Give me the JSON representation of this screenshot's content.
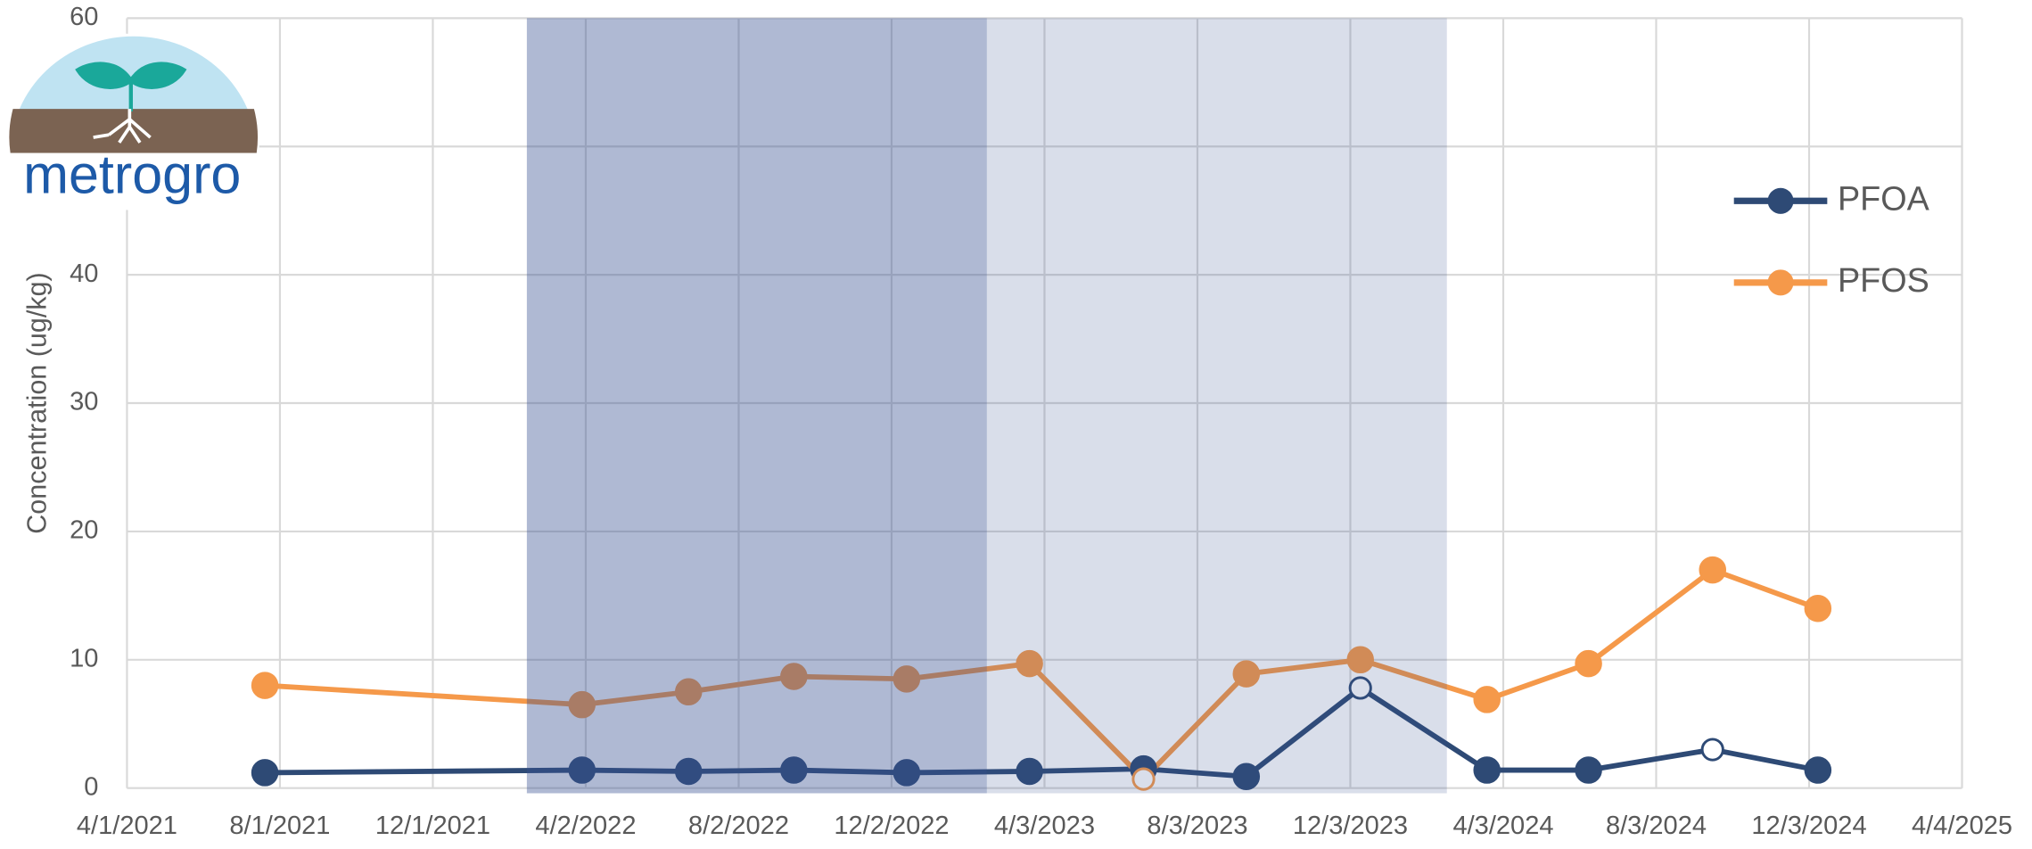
{
  "logo": {
    "text": "metrogro"
  },
  "chart_data": {
    "type": "line",
    "y_label": "Concentration (ug/kg)",
    "x": [
      "7/20/2021",
      "3/30/2022",
      "6/23/2022",
      "9/15/2022",
      "12/14/2022",
      "3/22/2023",
      "6/21/2023",
      "9/11/2023",
      "12/11/2023",
      "3/21/2024",
      "6/10/2024",
      "9/17/2024",
      "12/10/2024"
    ],
    "series": [
      {
        "name": "PFOA",
        "color": "#2e4a75",
        "values": [
          1.2,
          1.4,
          1.3,
          1.4,
          1.2,
          1.3,
          1.5,
          0.9,
          7.8,
          1.4,
          1.4,
          3.0,
          1.4
        ],
        "hollow": [
          8,
          11
        ]
      },
      {
        "name": "PFOS",
        "color": "#f5994a",
        "values": [
          8.0,
          6.5,
          7.5,
          8.7,
          8.5,
          9.7,
          0.7,
          8.9,
          10.0,
          6.9,
          9.7,
          17.0,
          14.0
        ],
        "hollow": [
          6
        ]
      }
    ],
    "shaded_regions": [
      {
        "start": "2/14/2022",
        "end": "2/16/2023",
        "color": "rgba(55,80,145,0.4)"
      },
      {
        "start": "2/16/2023",
        "end": "2/18/2024",
        "color": "rgba(55,80,145,0.19)"
      }
    ],
    "xlim": [
      "4/1/2021",
      "4/4/2025"
    ],
    "xticks": [
      "4/1/2021",
      "8/1/2021",
      "12/1/2021",
      "4/2/2022",
      "8/2/2022",
      "12/2/2022",
      "4/3/2023",
      "8/3/2023",
      "12/3/2023",
      "4/3/2024",
      "8/3/2024",
      "12/3/2024",
      "4/4/2025"
    ],
    "ylim": [
      0,
      60
    ],
    "yticks": [
      0,
      10,
      20,
      30,
      40,
      50,
      60
    ],
    "grid": true,
    "legend": "right"
  }
}
